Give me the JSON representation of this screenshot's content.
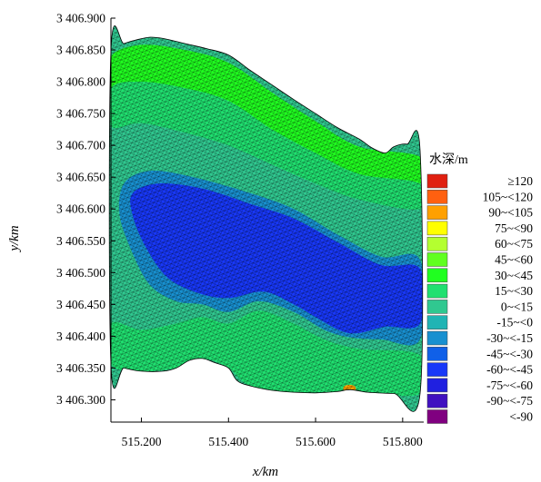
{
  "chart_data": {
    "type": "heatmap",
    "title": "",
    "xlabel": "x/km",
    "ylabel": "y/km",
    "xlim": [
      515.13,
      515.84
    ],
    "ylim": [
      3406.265,
      3406.9
    ],
    "x_ticks": [
      {
        "value": 515.2,
        "label": "515.200"
      },
      {
        "value": 515.4,
        "label": "515.400"
      },
      {
        "value": 515.6,
        "label": "515.600"
      },
      {
        "value": 515.8,
        "label": "515.800"
      }
    ],
    "y_ticks": [
      {
        "value": 3406.3,
        "label": "3 406.300"
      },
      {
        "value": 3406.35,
        "label": "3 406.350"
      },
      {
        "value": 3406.4,
        "label": "3 406.400"
      },
      {
        "value": 3406.45,
        "label": "3 406.450"
      },
      {
        "value": 3406.5,
        "label": "3 406.500"
      },
      {
        "value": 3406.55,
        "label": "3 406.550"
      },
      {
        "value": 3406.6,
        "label": "3 406.600"
      },
      {
        "value": 3406.65,
        "label": "3 406.650"
      },
      {
        "value": 3406.7,
        "label": "3 406.700"
      },
      {
        "value": 3406.75,
        "label": "3 406.750"
      },
      {
        "value": 3406.8,
        "label": "3 406.800"
      },
      {
        "value": 3406.85,
        "label": "3 406.850"
      },
      {
        "value": 3406.9,
        "label": "3 406.900"
      }
    ],
    "domain_top_boundary": [
      [
        515.13,
        3406.848
      ],
      [
        515.16,
        3406.86
      ],
      [
        515.19,
        3406.866
      ],
      [
        515.22,
        3406.87
      ],
      [
        515.25,
        3406.868
      ],
      [
        515.3,
        3406.86
      ],
      [
        515.35,
        3406.852
      ],
      [
        515.4,
        3406.842
      ],
      [
        515.45,
        3406.818
      ],
      [
        515.5,
        3406.795
      ],
      [
        515.55,
        3406.772
      ],
      [
        515.6,
        3406.75
      ],
      [
        515.65,
        3406.728
      ],
      [
        515.7,
        3406.71
      ],
      [
        515.73,
        3406.696
      ],
      [
        515.76,
        3406.688
      ],
      [
        515.78,
        3406.698
      ],
      [
        515.81,
        3406.702
      ],
      [
        515.84,
        3406.692
      ]
    ],
    "domain_bottom_boundary": [
      [
        515.84,
        3406.31
      ],
      [
        515.78,
        3406.31
      ],
      [
        515.72,
        3406.312
      ],
      [
        515.68,
        3406.316
      ],
      [
        515.65,
        3406.313
      ],
      [
        515.6,
        3406.311
      ],
      [
        515.55,
        3406.312
      ],
      [
        515.5,
        3406.315
      ],
      [
        515.45,
        3406.322
      ],
      [
        515.42,
        3406.33
      ],
      [
        515.4,
        3406.35
      ],
      [
        515.37,
        3406.358
      ],
      [
        515.34,
        3406.365
      ],
      [
        515.31,
        3406.362
      ],
      [
        515.28,
        3406.35
      ],
      [
        515.25,
        3406.345
      ],
      [
        515.2,
        3406.345
      ],
      [
        515.16,
        3406.35
      ],
      [
        515.13,
        3406.356
      ]
    ],
    "depth_bands": [
      {
        "class": "30~<45",
        "points": [
          [
            515.13,
            3406.84
          ],
          [
            515.2,
            3406.858
          ],
          [
            515.3,
            3406.85
          ],
          [
            515.4,
            3406.83
          ],
          [
            515.5,
            3406.783
          ],
          [
            515.6,
            3406.738
          ],
          [
            515.7,
            3406.698
          ],
          [
            515.84,
            3406.682
          ],
          [
            515.84,
            3406.64
          ],
          [
            515.7,
            3406.655
          ],
          [
            515.6,
            3406.688
          ],
          [
            515.5,
            3406.725
          ],
          [
            515.4,
            3406.77
          ],
          [
            515.3,
            3406.79
          ],
          [
            515.2,
            3406.8
          ],
          [
            515.13,
            3406.79
          ]
        ]
      },
      {
        "class": "15~<30",
        "points": [
          [
            515.13,
            3406.79
          ],
          [
            515.2,
            3406.8
          ],
          [
            515.3,
            3406.79
          ],
          [
            515.4,
            3406.77
          ],
          [
            515.5,
            3406.725
          ],
          [
            515.6,
            3406.688
          ],
          [
            515.7,
            3406.655
          ],
          [
            515.84,
            3406.64
          ],
          [
            515.84,
            3406.6
          ],
          [
            515.7,
            3406.615
          ],
          [
            515.6,
            3406.64
          ],
          [
            515.5,
            3406.67
          ],
          [
            515.4,
            3406.7
          ],
          [
            515.3,
            3406.72
          ],
          [
            515.2,
            3406.735
          ],
          [
            515.13,
            3406.73
          ]
        ]
      },
      {
        "class": "15~<30",
        "points": [
          [
            515.13,
            3406.42
          ],
          [
            515.2,
            3406.41
          ],
          [
            515.28,
            3406.42
          ],
          [
            515.34,
            3406.43
          ],
          [
            515.4,
            3406.42
          ],
          [
            515.47,
            3406.44
          ],
          [
            515.55,
            3406.42
          ],
          [
            515.62,
            3406.395
          ],
          [
            515.7,
            3406.38
          ],
          [
            515.84,
            3406.37
          ],
          [
            515.84,
            3406.31
          ],
          [
            515.72,
            3406.312
          ],
          [
            515.65,
            3406.313
          ],
          [
            515.55,
            3406.312
          ],
          [
            515.45,
            3406.322
          ],
          [
            515.4,
            3406.35
          ],
          [
            515.34,
            3406.365
          ],
          [
            515.28,
            3406.35
          ],
          [
            515.2,
            3406.345
          ],
          [
            515.13,
            3406.356
          ]
        ]
      },
      {
        "class": "-30~<-15",
        "points": [
          [
            515.16,
            3406.64
          ],
          [
            515.22,
            3406.66
          ],
          [
            515.32,
            3406.65
          ],
          [
            515.45,
            3406.625
          ],
          [
            515.55,
            3406.6
          ],
          [
            515.65,
            3406.56
          ],
          [
            515.75,
            3406.525
          ],
          [
            515.84,
            3406.52
          ],
          [
            515.84,
            3406.395
          ],
          [
            515.75,
            3406.395
          ],
          [
            515.68,
            3406.398
          ],
          [
            515.62,
            3406.41
          ],
          [
            515.55,
            3406.438
          ],
          [
            515.47,
            3406.455
          ],
          [
            515.4,
            3406.438
          ],
          [
            515.34,
            3406.45
          ],
          [
            515.28,
            3406.455
          ],
          [
            515.22,
            3406.48
          ],
          [
            515.18,
            3406.53
          ],
          [
            515.15,
            3406.59
          ]
        ]
      },
      {
        "class": "-60~<-45",
        "points": [
          [
            515.18,
            3406.625
          ],
          [
            515.24,
            3406.64
          ],
          [
            515.34,
            3406.632
          ],
          [
            515.45,
            3406.608
          ],
          [
            515.55,
            3406.585
          ],
          [
            515.65,
            3406.548
          ],
          [
            515.75,
            3406.512
          ],
          [
            515.84,
            3406.506
          ],
          [
            515.84,
            3406.42
          ],
          [
            515.76,
            3406.415
          ],
          [
            515.7,
            3406.405
          ],
          [
            515.66,
            3406.408
          ],
          [
            515.6,
            3406.43
          ],
          [
            515.55,
            3406.45
          ],
          [
            515.48,
            3406.47
          ],
          [
            515.4,
            3406.46
          ],
          [
            515.33,
            3406.468
          ],
          [
            515.26,
            3406.492
          ],
          [
            515.21,
            3406.54
          ],
          [
            515.18,
            3406.59
          ]
        ]
      }
    ],
    "hotspots": [
      {
        "class": "90~<105",
        "x": 515.678,
        "y": 3406.318
      }
    ],
    "legend": {
      "title": "水深/m",
      "placement": "right",
      "items": [
        {
          "label": "≥120",
          "color": "#e02010"
        },
        {
          "label": "105~<120",
          "color": "#ff6010"
        },
        {
          "label": "90~<105",
          "color": "#ffa000"
        },
        {
          "label": "75~<90",
          "color": "#ffff00"
        },
        {
          "label": "60~<75",
          "color": "#b4ff30"
        },
        {
          "label": "45~<60",
          "color": "#60ff20"
        },
        {
          "label": "30~<45",
          "color": "#20ff20"
        },
        {
          "label": "15~<30",
          "color": "#20e070"
        },
        {
          "label": "0~<15",
          "color": "#30c890"
        },
        {
          "label": "-15~<0",
          "color": "#20b4b4"
        },
        {
          "label": "-30~<-15",
          "color": "#1890d0"
        },
        {
          "label": "-45~<-30",
          "color": "#1060e8"
        },
        {
          "label": "-60~<-45",
          "color": "#1838f8"
        },
        {
          "label": "-75~<-60",
          "color": "#2020e0"
        },
        {
          "label": "-90~<-75",
          "color": "#4010c0"
        },
        {
          "label": "<-90",
          "color": "#800080"
        }
      ]
    },
    "base_class": "0~<15",
    "mesh": "on"
  }
}
